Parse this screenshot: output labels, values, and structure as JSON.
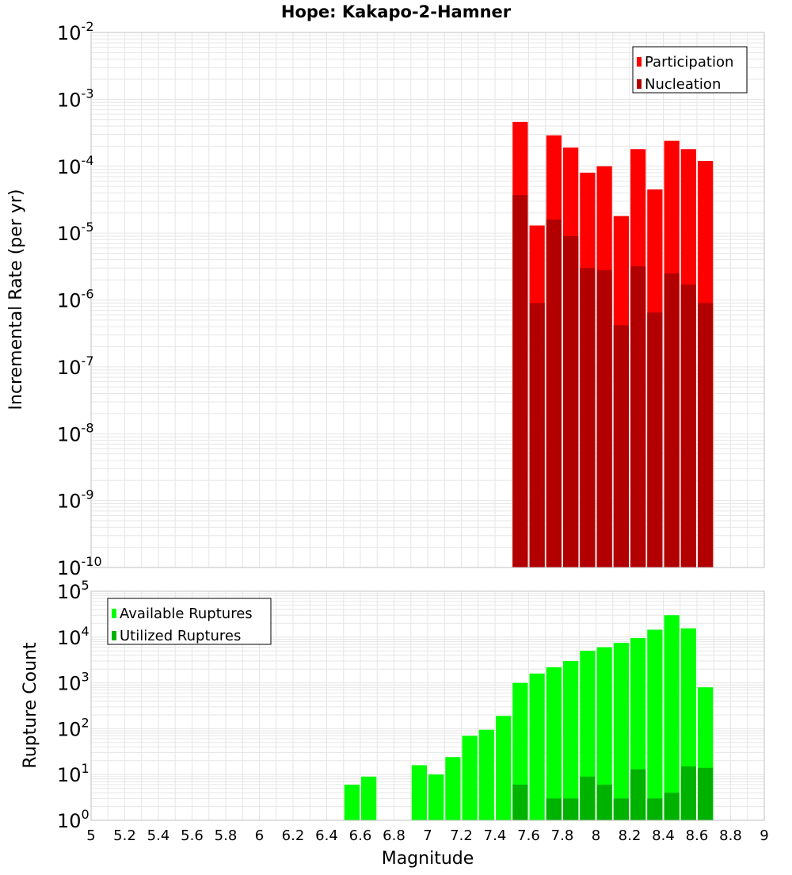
{
  "chart_data": {
    "title": "Hope: Kakapo-2-Hamner",
    "xlabel": "Magnitude",
    "xlim": [
      5,
      9
    ],
    "xticks": [
      "5",
      "5.2",
      "5.4",
      "5.6",
      "5.8",
      "6",
      "6.2",
      "6.4",
      "6.6",
      "6.8",
      "7",
      "7.2",
      "7.4",
      "7.6",
      "7.8",
      "8",
      "8.2",
      "8.4",
      "8.6",
      "8.8",
      "9"
    ],
    "bin_width": 0.1,
    "colors": {
      "participation": "#ff0000",
      "nucleation": "#b20000",
      "available": "#00ff00",
      "utilized": "#00b200",
      "grid": "#e6e6e6",
      "frame": "#c0c0c0"
    },
    "panels": [
      {
        "type": "bar",
        "ylabel": "Incremental Rate (per yr)",
        "yscale": "log",
        "ylim_exponent": [
          -10,
          -2
        ],
        "legend": {
          "position": "top-right",
          "labels": [
            "Participation",
            "Nucleation"
          ]
        },
        "series": [
          {
            "name": "Participation",
            "x": [
              7.55,
              7.65,
              7.75,
              7.85,
              7.95,
              8.05,
              8.15,
              8.25,
              8.35,
              8.45,
              8.55,
              8.65
            ],
            "values": [
              0.00046,
              1.3e-05,
              0.00029,
              0.00019,
              8e-05,
              0.0001,
              1.8e-05,
              0.00018,
              4.5e-05,
              0.00024,
              0.00018,
              0.00012
            ]
          },
          {
            "name": "Nucleation",
            "x": [
              7.55,
              7.65,
              7.75,
              7.85,
              7.95,
              8.05,
              8.15,
              8.25,
              8.35,
              8.45,
              8.55,
              8.65
            ],
            "values": [
              3.7e-05,
              9e-07,
              1.6e-05,
              9e-06,
              3e-06,
              2.8e-06,
              4.2e-07,
              3.2e-06,
              6.5e-07,
              2.5e-06,
              1.7e-06,
              9e-07
            ]
          }
        ]
      },
      {
        "type": "bar",
        "ylabel": "Rupture Count",
        "yscale": "log",
        "ylim_exponent": [
          0,
          5
        ],
        "legend": {
          "position": "top-left",
          "labels": [
            "Available Ruptures",
            "Utilized Ruptures"
          ]
        },
        "series": [
          {
            "name": "Available Ruptures",
            "x": [
              6.45,
              6.55,
              6.65,
              6.75,
              6.95,
              7.05,
              7.15,
              7.25,
              7.35,
              7.45,
              7.55,
              7.65,
              7.75,
              7.85,
              7.95,
              8.05,
              8.15,
              8.25,
              8.35,
              8.45,
              8.55,
              8.65
            ],
            "values": [
              1,
              6,
              9,
              1,
              16,
              10,
              24,
              70,
              95,
              190,
              1000,
              1600,
              2200,
              3000,
              5000,
              6000,
              7500,
              9500,
              14500,
              30000,
              15500,
              800
            ]
          },
          {
            "name": "Utilized Ruptures",
            "x": [
              7.55,
              7.65,
              7.75,
              7.85,
              7.95,
              8.05,
              8.15,
              8.25,
              8.35,
              8.45,
              8.55,
              8.65
            ],
            "values": [
              6,
              1,
              3,
              3,
              9,
              6,
              3,
              13,
              3,
              4,
              15,
              14
            ]
          }
        ]
      }
    ]
  }
}
